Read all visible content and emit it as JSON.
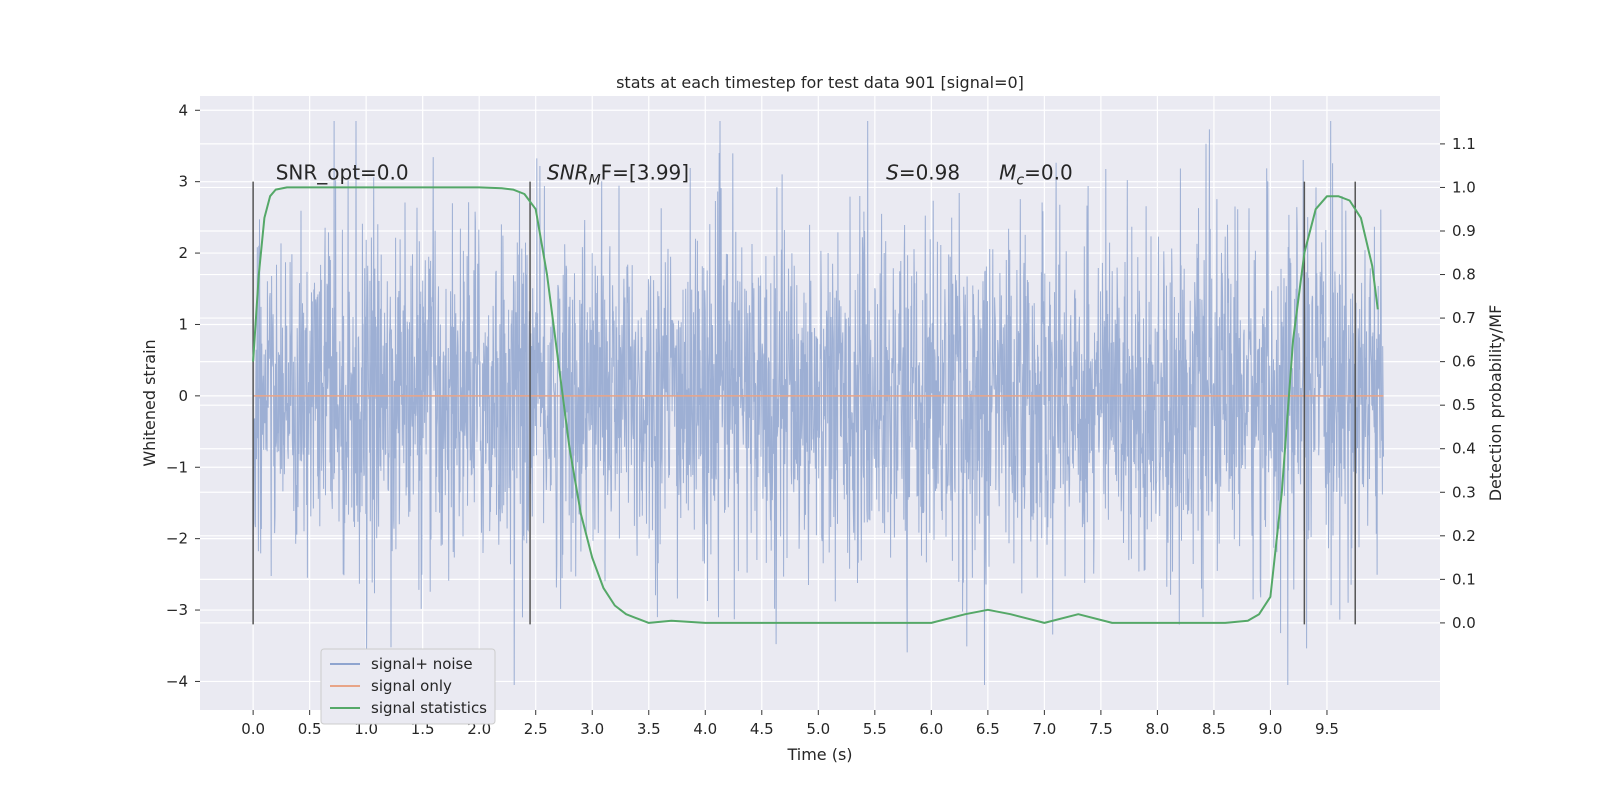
{
  "chart_data": {
    "type": "line",
    "title": "stats at each timestep for test data 901 [signal=0]",
    "xlabel": "Time (s)",
    "ylabel": "Whitened strain",
    "y2label": "Detection probability/MF",
    "xlim": [
      -0.47,
      10.5
    ],
    "ylim": [
      -4.4,
      4.2
    ],
    "y2lim": [
      -0.2,
      1.21
    ],
    "xticks": [
      "0.0",
      "0.5",
      "1.0",
      "1.5",
      "2.0",
      "2.5",
      "3.0",
      "3.5",
      "4.0",
      "4.5",
      "5.0",
      "5.5",
      "6.0",
      "6.5",
      "7.0",
      "7.5",
      "8.0",
      "8.5",
      "9.0",
      "9.5"
    ],
    "yticks": [
      "−4",
      "−3",
      "−2",
      "−1",
      "0",
      "1",
      "2",
      "3",
      "4"
    ],
    "y2ticks": [
      "0.0",
      "0.1",
      "0.2",
      "0.3",
      "0.4",
      "0.5",
      "0.6",
      "0.7",
      "0.8",
      "0.9",
      "1.0",
      "1.1"
    ],
    "grid": true,
    "legend_position": "lower-left",
    "annotations": [
      {
        "label": "SNR_opt=0.0",
        "x": 0.2,
        "y": 3.0
      },
      {
        "pre": "SNR",
        "sub": "M",
        "post": "F=[3.99]",
        "x": 2.6,
        "y": 3.0
      },
      {
        "pre": "S",
        "sub": "",
        "post": "=0.98",
        "x": 5.6,
        "y": 3.0
      },
      {
        "pre": "M",
        "sub": "c",
        "post": "=0.0",
        "x": 6.6,
        "y": 3.0
      }
    ],
    "vlines": [
      0.0,
      2.45,
      9.3,
      9.75
    ],
    "vline_range": [
      -3.2,
      3.0
    ],
    "series": [
      {
        "name": "signal+ noise",
        "color": "#8fa4cf",
        "axis": "left",
        "description_values": {
          "x_start": 0.0,
          "x_end": 10.0,
          "core_amplitude": 1.3,
          "peak_min": -4.05,
          "peak_max": 3.85
        }
      },
      {
        "name": "signal only",
        "color": "#e8a487",
        "axis": "left",
        "x": [
          0.0,
          10.0
        ],
        "y": [
          0.0,
          0.0
        ]
      },
      {
        "name": "signal statistics",
        "color": "#55a868",
        "axis": "right",
        "x": [
          0.0,
          0.05,
          0.1,
          0.15,
          0.2,
          0.3,
          0.5,
          1.0,
          1.5,
          2.0,
          2.2,
          2.3,
          2.4,
          2.5,
          2.6,
          2.7,
          2.8,
          2.9,
          3.0,
          3.1,
          3.2,
          3.3,
          3.4,
          3.5,
          3.7,
          4.0,
          4.5,
          5.0,
          5.5,
          6.0,
          6.3,
          6.5,
          6.7,
          7.0,
          7.3,
          7.6,
          8.0,
          8.3,
          8.6,
          8.8,
          8.9,
          9.0,
          9.1,
          9.2,
          9.3,
          9.4,
          9.5,
          9.6,
          9.7,
          9.8,
          9.9,
          9.95
        ],
        "y": [
          0.6,
          0.8,
          0.93,
          0.98,
          0.995,
          1.0,
          1.0,
          1.0,
          1.0,
          1.0,
          0.998,
          0.995,
          0.985,
          0.95,
          0.8,
          0.6,
          0.4,
          0.25,
          0.15,
          0.08,
          0.04,
          0.02,
          0.01,
          0.0,
          0.005,
          0.0,
          0.0,
          0.0,
          0.0,
          0.0,
          0.02,
          0.03,
          0.02,
          0.0,
          0.02,
          0.0,
          0.0,
          0.0,
          0.0,
          0.005,
          0.02,
          0.06,
          0.3,
          0.65,
          0.85,
          0.95,
          0.98,
          0.98,
          0.97,
          0.93,
          0.82,
          0.72
        ]
      }
    ]
  }
}
